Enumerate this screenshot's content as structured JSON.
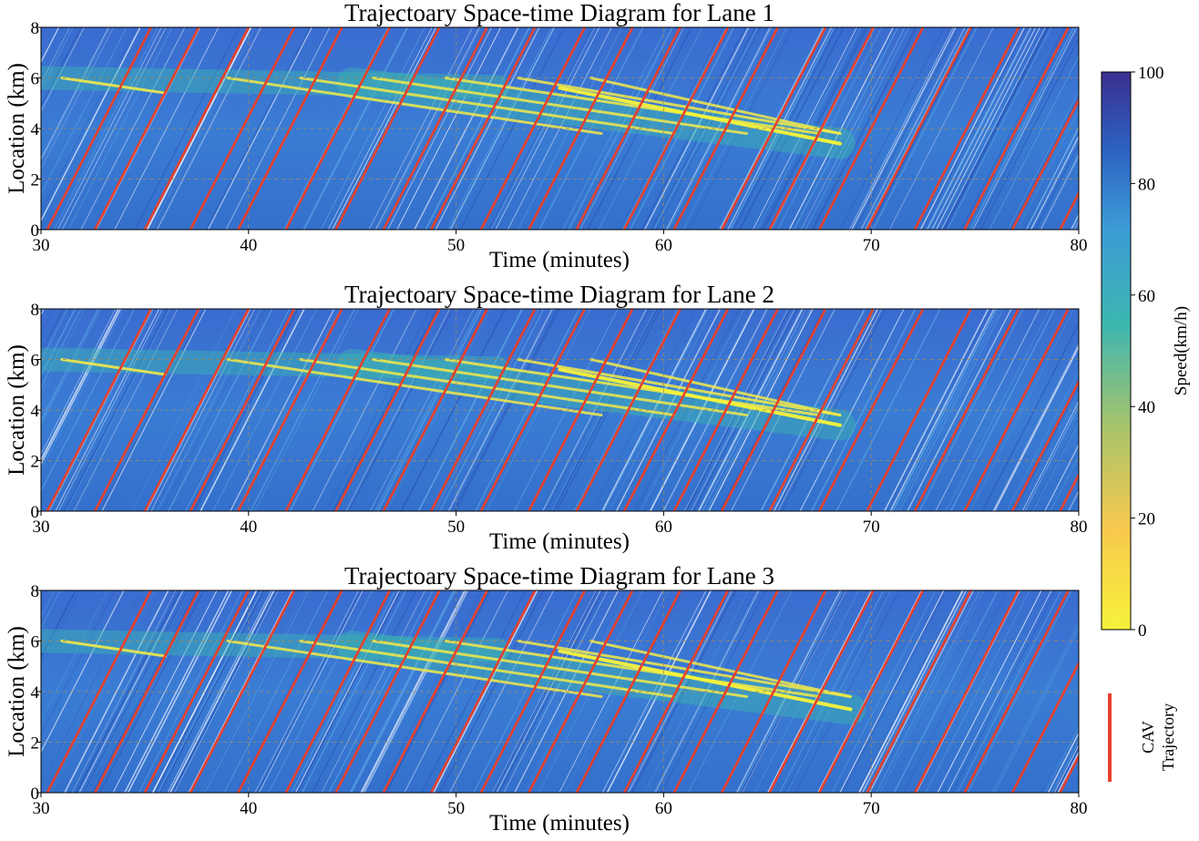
{
  "chart_data": {
    "type": "heatmap",
    "panels": [
      {
        "title": "Trajectoary Space-time Diagram for Lane 1",
        "xlabel": "Time (minutes)",
        "ylabel": "Location (km)",
        "xlim": [
          30,
          80
        ],
        "ylim": [
          0,
          8
        ],
        "xticks": [
          30,
          40,
          50,
          60,
          70,
          80
        ],
        "yticks": [
          0,
          2,
          4,
          6,
          8
        ],
        "grid": true,
        "congestion_start_location_km": 6.0,
        "congestion_end": [
          68.5,
          3.4
        ]
      },
      {
        "title": "Trajectoary Space-time Diagram for Lane 2",
        "xlabel": "Time (minutes)",
        "ylabel": "Location (km)",
        "xlim": [
          30,
          80
        ],
        "ylim": [
          0,
          8
        ],
        "xticks": [
          30,
          40,
          50,
          60,
          70,
          80
        ],
        "yticks": [
          0,
          2,
          4,
          6,
          8
        ],
        "grid": true,
        "congestion_start_location_km": 6.0,
        "congestion_end": [
          68.5,
          3.4
        ]
      },
      {
        "title": "Trajectoary Space-time Diagram for Lane 3",
        "xlabel": "Time (minutes)",
        "ylabel": "Location (km)",
        "xlim": [
          30,
          80
        ],
        "ylim": [
          0,
          8
        ],
        "xticks": [
          30,
          40,
          50,
          60,
          70,
          80
        ],
        "yticks": [
          0,
          2,
          4,
          6,
          8
        ],
        "grid": true,
        "congestion_start_location_km": 6.0,
        "congestion_end": [
          69.0,
          3.3
        ]
      }
    ],
    "cav_trajectory_start_minutes": [
      30.3,
      32.6,
      35.0,
      37.2,
      39.5,
      41.8,
      44.2,
      46.5,
      48.8,
      51.2,
      53.5,
      55.8,
      58.1,
      60.5,
      62.8,
      65.1,
      67.5,
      69.8,
      72.1,
      74.5,
      76.8,
      79.1
    ],
    "cav_free_flow_speed_kmh": 96,
    "colorbar": {
      "label": "Speed(km/h)",
      "min": 0,
      "max": 100,
      "ticks": [
        0,
        20,
        40,
        60,
        80,
        100
      ],
      "colors": [
        "#f7f23a",
        "#f7c94e",
        "#a9c46a",
        "#3cb6b0",
        "#3c9bd6",
        "#2c62c2",
        "#3b2f8f"
      ]
    },
    "legend": {
      "label_line1": "CAV",
      "label_line2": "Trajectory",
      "color": "#e8402b"
    }
  }
}
